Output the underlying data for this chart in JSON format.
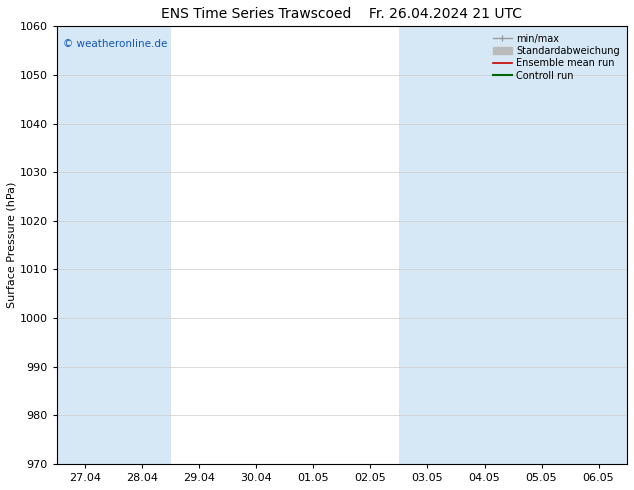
{
  "title_left": "ENS Time Series Trawscoed",
  "title_right": "Fr. 26.04.2024 21 UTC",
  "ylabel": "Surface Pressure (hPa)",
  "ylim": [
    970,
    1060
  ],
  "yticks": [
    970,
    980,
    990,
    1000,
    1010,
    1020,
    1030,
    1040,
    1050,
    1060
  ],
  "x_labels": [
    "27.04",
    "28.04",
    "29.04",
    "30.04",
    "01.05",
    "02.05",
    "03.05",
    "04.05",
    "05.05",
    "06.05"
  ],
  "n_ticks": 10,
  "band_color": "#d6e8f5",
  "background_color": "#ffffff",
  "plot_bg_color": "#ffffff",
  "legend_items": [
    {
      "label": "min/max",
      "color": "#999999",
      "lw": 1.0
    },
    {
      "label": "Standardabweichung",
      "color": "#bbbbbb",
      "lw": 5
    },
    {
      "label": "Ensemble mean run",
      "color": "#cc0000",
      "lw": 1.2
    },
    {
      "label": "Controll run",
      "color": "#006600",
      "lw": 1.5
    }
  ],
  "watermark": "© weatheronline.de",
  "watermark_color": "#1155bb",
  "title_fontsize": 10,
  "axis_fontsize": 8,
  "tick_fontsize": 8,
  "band_indices": [
    0,
    1,
    6,
    7,
    8,
    9
  ]
}
